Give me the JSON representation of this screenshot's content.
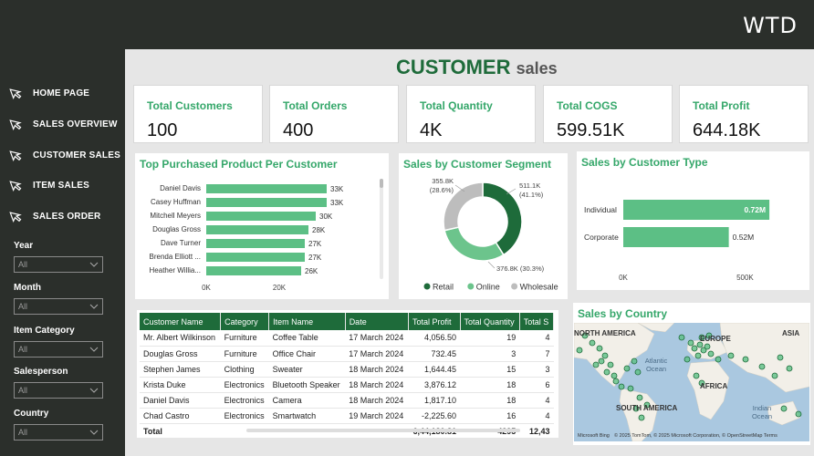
{
  "brand": "WTD",
  "title": {
    "main": "CUSTOMER",
    "sub": "sales"
  },
  "nav": [
    {
      "label": "HOME PAGE",
      "icon": "arrow-icon"
    },
    {
      "label": "SALES OVERVIEW",
      "icon": "arrow-icon"
    },
    {
      "label": "CUSTOMER SALES",
      "icon": "arrow-icon"
    },
    {
      "label": "ITEM SALES",
      "icon": "arrow-icon"
    },
    {
      "label": "SALES ORDER",
      "icon": "arrow-icon"
    }
  ],
  "filters": [
    {
      "label": "Year",
      "value": "All"
    },
    {
      "label": "Month",
      "value": "All"
    },
    {
      "label": "Item Category",
      "value": "All"
    },
    {
      "label": "Salesperson",
      "value": "All"
    },
    {
      "label": "Country",
      "value": "All"
    }
  ],
  "kpis": [
    {
      "label": "Total Customers",
      "value": "100"
    },
    {
      "label": "Total Orders",
      "value": "400"
    },
    {
      "label": "Total Quantity",
      "value": "4K"
    },
    {
      "label": "Total COGS",
      "value": "599.51K"
    },
    {
      "label": "Total Profit",
      "value": "644.18K"
    }
  ],
  "colors": {
    "dark": "#2b2f2b",
    "green": "#1e6b3a",
    "accent": "#35a76a",
    "bar": "#5cbf85",
    "online": "#6cc48c",
    "wholesale": "#bdbdbd",
    "retail": "#1e6b3a"
  },
  "chart_data": [
    {
      "type": "bar",
      "title": "Top Purchased Product Per Customer",
      "categories": [
        "Daniel Davis",
        "Casey Huffman",
        "Mitchell Meyers",
        "Douglas Gross",
        "Dave Turner",
        "Brenda Elliott ...",
        "Heather Willia..."
      ],
      "values": [
        33,
        33,
        30,
        28,
        27,
        27,
        26
      ],
      "value_labels": [
        "33K",
        "33K",
        "30K",
        "28K",
        "27K",
        "27K",
        "26K"
      ],
      "xticks": [
        "0K",
        "20K"
      ],
      "xlim": [
        0,
        40
      ]
    },
    {
      "type": "pie",
      "title": "Sales by Customer Segment",
      "labels": [
        "Retail",
        "Online",
        "Wholesale"
      ],
      "values": [
        511.1,
        376.8,
        355.8
      ],
      "value_labels": [
        "511.1K\n(41.1%)",
        "376.8K (30.3%)",
        "355.8K\n(28.6%)"
      ]
    },
    {
      "type": "bar",
      "title": "Sales by Customer Type",
      "categories": [
        "Individual",
        "Corporate"
      ],
      "values": [
        0.72,
        0.52
      ],
      "value_labels": [
        "0.72M",
        "0.52M"
      ],
      "xticks": [
        "0K",
        "500K"
      ],
      "xlim": [
        0,
        0.85
      ]
    }
  ],
  "table": {
    "columns": [
      "Customer Name",
      "Category",
      "Item Name",
      "Date",
      "Total Profit",
      "Total Quantity",
      "Total S"
    ],
    "rows": [
      [
        "Mr. Albert Wilkinson",
        "Furniture",
        "Coffee Table",
        "17 March 2024",
        "4,056.50",
        "19",
        "4"
      ],
      [
        "Douglas Gross",
        "Furniture",
        "Office Chair",
        "17 March 2024",
        "732.45",
        "3",
        "7"
      ],
      [
        "Stephen James",
        "Clothing",
        "Sweater",
        "18 March 2024",
        "1,644.45",
        "15",
        "3"
      ],
      [
        "Krista Duke",
        "Electronics",
        "Bluetooth Speaker",
        "18 March 2024",
        "3,876.12",
        "18",
        "6"
      ],
      [
        "Daniel Davis",
        "Electronics",
        "Camera",
        "18 March 2024",
        "1,817.10",
        "18",
        "4"
      ],
      [
        "Chad Castro",
        "Electronics",
        "Smartwatch",
        "19 March 2024",
        "-2,225.60",
        "16",
        "4"
      ]
    ],
    "total": [
      "Total",
      "",
      "",
      "",
      "6,44,180.81",
      "4295",
      "12,43"
    ]
  },
  "map": {
    "title": "Sales by Country",
    "labels": [
      "NORTH AMERICA",
      "EUROPE",
      "ASIA",
      "Atlantic Ocean",
      "AFRICA",
      "SOUTH AMERICA",
      "Indian Ocean"
    ],
    "attribution": "© 2025 TomTom, © 2025 Microsoft Corporation, © OpenStreetMap Terms",
    "provider": "Microsoft Bing"
  }
}
